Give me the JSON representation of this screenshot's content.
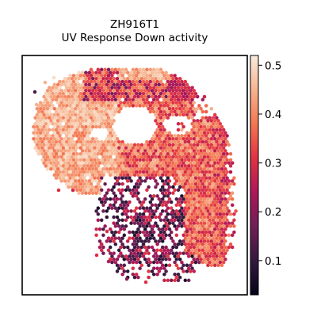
{
  "chart_data": {
    "type": "heatmap",
    "subtype": "spatial-hexbin",
    "title": "ZH916T1",
    "subtitle": "UV Response Down activity",
    "xlabel": "",
    "ylabel": "",
    "grid": false,
    "colormap": "rocket",
    "colormap_stops": [
      "#03051a",
      "#35193e",
      "#701f57",
      "#ad1759",
      "#e13342",
      "#f37651",
      "#f6b48f",
      "#faebdd"
    ],
    "colorbar": {
      "placement": "right",
      "range": [
        0.03,
        0.52
      ],
      "ticks": [
        0.1,
        0.2,
        0.3,
        0.4,
        0.5
      ],
      "tick_labels": [
        "0.1",
        "0.2",
        "0.3",
        "0.4",
        "0.5"
      ]
    },
    "regions": [
      {
        "name": "upper-left lobe",
        "typical_value": 0.44,
        "range": [
          0.36,
          0.5
        ]
      },
      {
        "name": "top band",
        "typical_value": 0.3,
        "range": [
          0.2,
          0.48
        ]
      },
      {
        "name": "right lobe",
        "typical_value": 0.36,
        "range": [
          0.26,
          0.46
        ]
      },
      {
        "name": "lower-central cluster",
        "typical_value": 0.2,
        "range": [
          0.06,
          0.32
        ]
      }
    ]
  }
}
